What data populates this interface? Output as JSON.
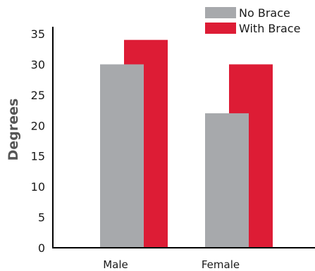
{
  "chart_data": {
    "type": "bar",
    "title": "",
    "xlabel": "",
    "ylabel": "Degrees",
    "ylim": [
      0,
      35
    ],
    "yticks": [
      0,
      5,
      10,
      15,
      20,
      25,
      30,
      35
    ],
    "categories": [
      "Male",
      "Female"
    ],
    "series": [
      {
        "name": "No Brace",
        "values": [
          30,
          22
        ],
        "color": "#a7a9ac"
      },
      {
        "name": "With Brace",
        "values": [
          34,
          30
        ],
        "color": "#dd1c35"
      }
    ],
    "legend_position": "top-right",
    "grid": false
  }
}
